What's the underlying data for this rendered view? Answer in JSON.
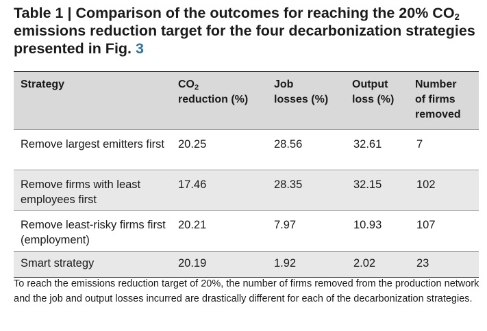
{
  "title": {
    "prefix": "Table 1 | Comparison of the outcomes for reaching the 20% CO",
    "sub": "2",
    "middle": " emissions reduction target for the four decarbonization strategies presented in Fig. ",
    "figref": "3"
  },
  "headers": [
    {
      "text": "Strategy"
    },
    {
      "pre": "CO",
      "sub": "2",
      "post": "reduction (%)"
    },
    {
      "line1": "Job",
      "line2": "losses (%)"
    },
    {
      "line1": "Output",
      "line2": "loss (%)"
    },
    {
      "line1": "Number",
      "line2": "of firms",
      "line3": "removed"
    }
  ],
  "rows": [
    [
      "Remove largest emitters first",
      "20.25",
      "28.56",
      "32.61",
      "7"
    ],
    [
      "Remove firms with least employees first",
      "17.46",
      "28.35",
      "32.15",
      "102"
    ],
    [
      "Remove least-risky firms first (employment)",
      "20.21",
      "7.97",
      "10.93",
      "107"
    ],
    [
      "Smart strategy",
      "20.19",
      "1.92",
      "2.02",
      "23"
    ]
  ],
  "footnote": "To reach the emissions reduction target of 20%, the number of firms removed from the production network and the job and output losses incurred are drastically different for each of the decarbonization strategies."
}
